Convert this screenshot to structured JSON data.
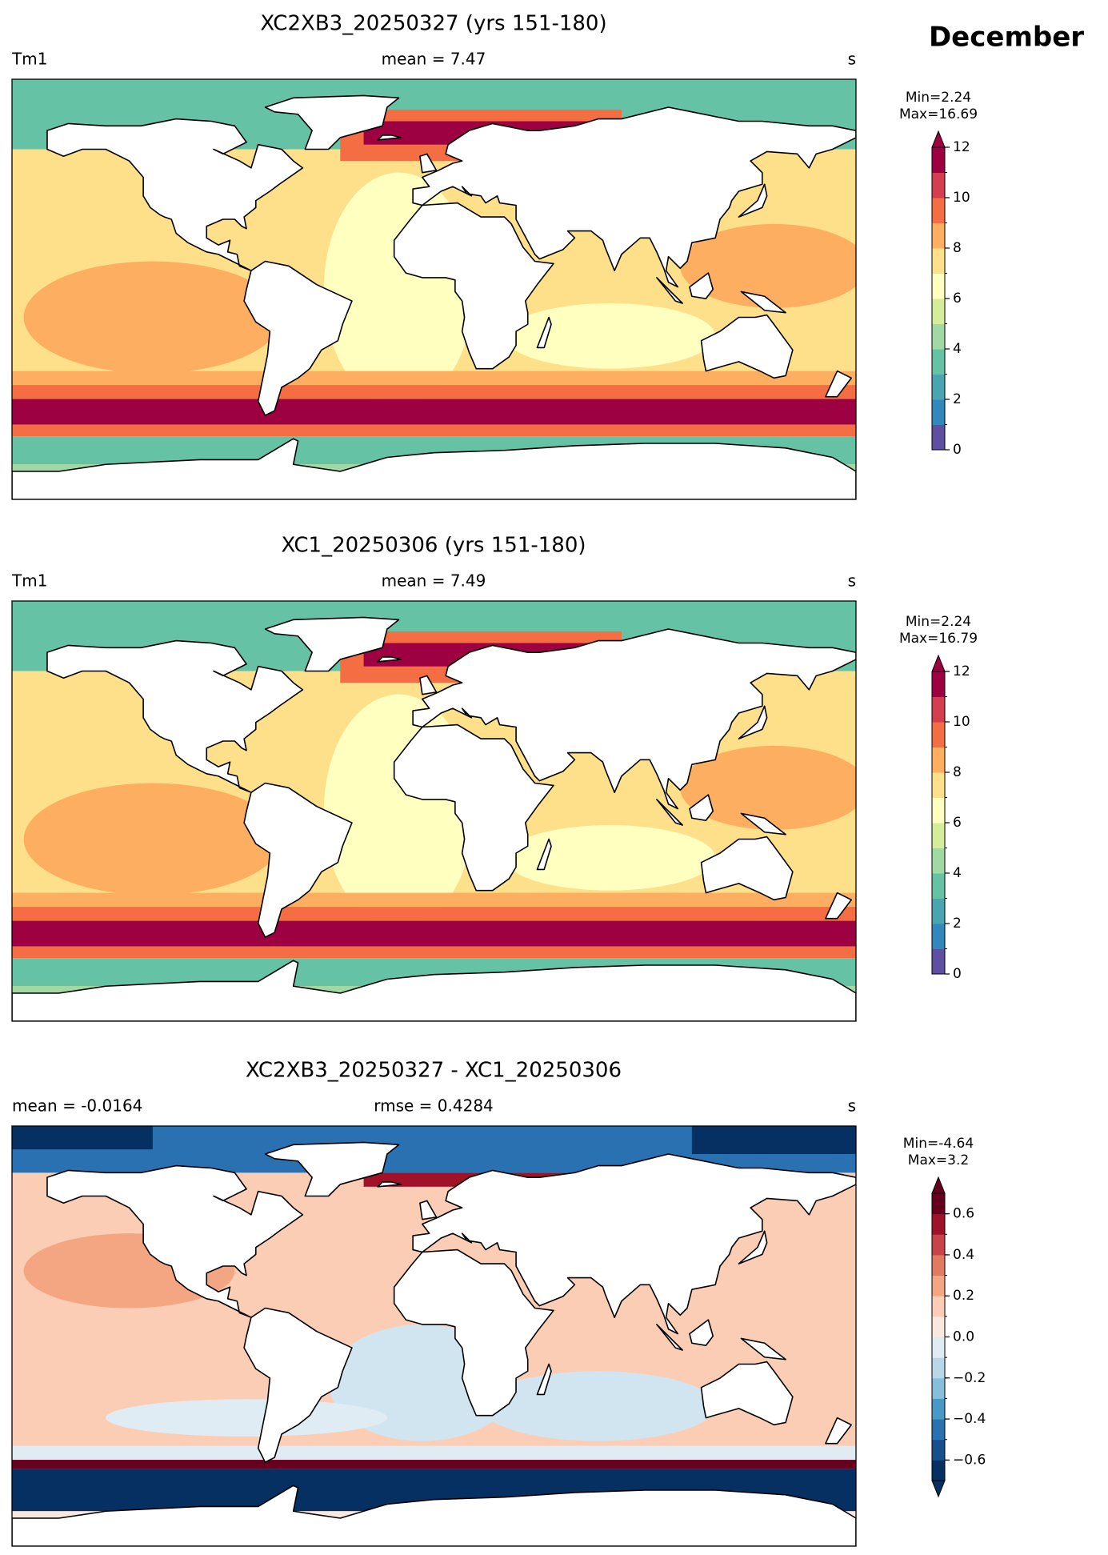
{
  "title": "December",
  "panels": [
    {
      "title": "XC2XB3_20250327 (yrs 151-180)",
      "left_label": "Tm1",
      "center_label": "mean = 7.47",
      "right_label": "s",
      "min_label": "Min=2.24",
      "max_label": "Max=16.69",
      "colorbar": {
        "lim": [
          0,
          12
        ],
        "ticks": [
          0,
          2,
          4,
          6,
          8,
          10,
          12
        ],
        "colors": [
          "#5e4fa2",
          "#3288bd",
          "#4ba4b1",
          "#66c2a5",
          "#a1d9a4",
          "#d4ed9b",
          "#ffffbf",
          "#fee08b",
          "#fdae61",
          "#f46d43",
          "#d53e4f",
          "#9e0142"
        ],
        "extend": "max",
        "over_color": "#9e0142"
      }
    },
    {
      "title": "XC1_20250306 (yrs 151-180)",
      "left_label": "Tm1",
      "center_label": "mean = 7.49",
      "right_label": "s",
      "min_label": "Min=2.24",
      "max_label": "Max=16.79",
      "colorbar": {
        "lim": [
          0,
          12
        ],
        "ticks": [
          0,
          2,
          4,
          6,
          8,
          10,
          12
        ],
        "colors": [
          "#5e4fa2",
          "#3288bd",
          "#4ba4b1",
          "#66c2a5",
          "#a1d9a4",
          "#d4ed9b",
          "#ffffbf",
          "#fee08b",
          "#fdae61",
          "#f46d43",
          "#d53e4f",
          "#9e0142"
        ],
        "extend": "max",
        "over_color": "#9e0142"
      }
    },
    {
      "title": "XC2XB3_20250327 - XC1_20250306",
      "left_label": "mean = -0.0164",
      "center_label": "rmse = 0.4284",
      "right_label": "s",
      "min_label": "Min=-4.64",
      "max_label": "Max=3.2",
      "colorbar": {
        "lim": [
          -0.7,
          0.7
        ],
        "ticks": [
          {
            "value": -0.6,
            "label": "−0.6"
          },
          {
            "value": -0.4,
            "label": "−0.4"
          },
          {
            "value": -0.2,
            "label": "−0.2"
          },
          {
            "value": 0,
            "label": "0.0"
          },
          0.2,
          0.4,
          0.6
        ],
        "colors": [
          "#053061",
          "#15508d",
          "#2a71b2",
          "#4a98c6",
          "#87beda",
          "#b8d8e9",
          "#e0ecf3",
          "#f9e8de",
          "#fbcdb5",
          "#f4a582",
          "#e07b62",
          "#c9444a",
          "#a11228",
          "#67001f"
        ],
        "extend": "both",
        "over_color": "#67001f",
        "under_color": "#053061"
      }
    }
  ]
}
